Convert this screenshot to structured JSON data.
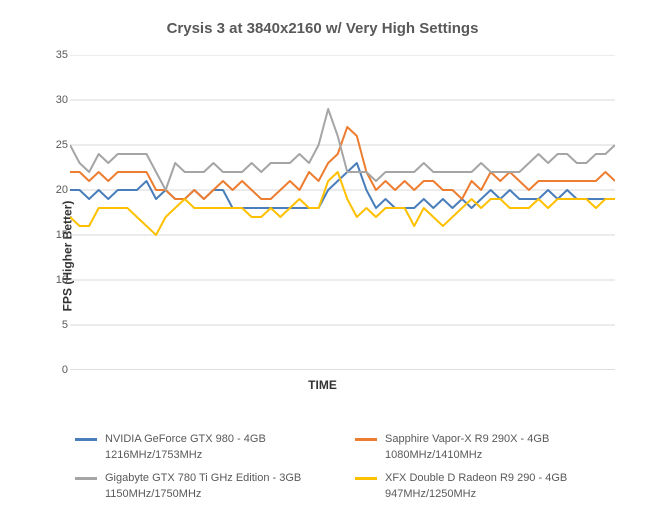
{
  "chart": {
    "type": "line",
    "title": "Crysis 3 at 3840x2160 w/ Very High Settings",
    "title_fontsize": 15,
    "title_color": "#595959",
    "xlabel": "TIME",
    "ylabel": "FPS (Higher Better)",
    "label_fontsize": 12,
    "label_color": "#333333",
    "ylim": [
      0,
      35
    ],
    "ytick_step": 5,
    "yticks": [
      0,
      5,
      10,
      15,
      20,
      25,
      30,
      35
    ],
    "background_color": "#ffffff",
    "grid_color": "#d9d9d9",
    "axis_color": "#bfbfbf",
    "tick_color": "#595959",
    "tick_fontsize": 11,
    "line_width": 2,
    "n_points": 58,
    "series": [
      {
        "name": "NVIDIA GeForce GTX 980 - 4GB 1216MHz/1753MHz",
        "color": "#4a7ebb",
        "values": [
          20,
          20,
          19,
          20,
          19,
          20,
          20,
          20,
          21,
          19,
          20,
          19,
          19,
          20,
          19,
          20,
          20,
          18,
          18,
          18,
          18,
          18,
          18,
          18,
          18,
          18,
          18,
          20,
          21,
          22,
          23,
          20,
          18,
          19,
          18,
          18,
          18,
          19,
          18,
          19,
          18,
          19,
          18,
          19,
          20,
          19,
          20,
          19,
          19,
          19,
          20,
          19,
          20,
          19,
          19,
          19,
          19,
          19
        ]
      },
      {
        "name": "Sapphire Vapor-X R9 290X - 4GB 1080MHz/1410MHz",
        "color": "#ed7d31",
        "values": [
          22,
          22,
          21,
          22,
          21,
          22,
          22,
          22,
          22,
          20,
          20,
          19,
          19,
          20,
          19,
          20,
          21,
          20,
          21,
          20,
          19,
          19,
          20,
          21,
          20,
          22,
          21,
          23,
          24,
          27,
          26,
          22,
          20,
          21,
          20,
          21,
          20,
          21,
          21,
          20,
          20,
          19,
          21,
          20,
          22,
          21,
          22,
          21,
          20,
          21,
          21,
          21,
          21,
          21,
          21,
          21,
          22,
          21
        ]
      },
      {
        "name": "Gigabyte GTX 780 Ti GHz Edition - 3GB 1150MHz/1750MHz",
        "color": "#a5a5a5",
        "values": [
          25,
          23,
          22,
          24,
          23,
          24,
          24,
          24,
          24,
          22,
          20,
          23,
          22,
          22,
          22,
          23,
          22,
          22,
          22,
          23,
          22,
          23,
          23,
          23,
          24,
          23,
          25,
          29,
          26,
          22,
          22,
          22,
          21,
          22,
          22,
          22,
          22,
          23,
          22,
          22,
          22,
          22,
          22,
          23,
          22,
          22,
          22,
          22,
          23,
          24,
          23,
          24,
          24,
          23,
          23,
          24,
          24,
          25
        ]
      },
      {
        "name": "XFX Double D Radeon R9 290 - 4GB 947MHz/1250MHz",
        "color": "#ffc000",
        "values": [
          17,
          16,
          16,
          18,
          18,
          18,
          18,
          17,
          16,
          15,
          17,
          18,
          19,
          18,
          18,
          18,
          18,
          18,
          18,
          17,
          17,
          18,
          17,
          18,
          19,
          18,
          18,
          21,
          22,
          19,
          17,
          18,
          17,
          18,
          18,
          18,
          16,
          18,
          17,
          16,
          17,
          18,
          19,
          18,
          19,
          19,
          18,
          18,
          18,
          19,
          18,
          19,
          19,
          19,
          19,
          18,
          19,
          19
        ]
      }
    ],
    "legend_position": "bottom",
    "legend_fontsize": 11,
    "legend_color": "#595959"
  }
}
